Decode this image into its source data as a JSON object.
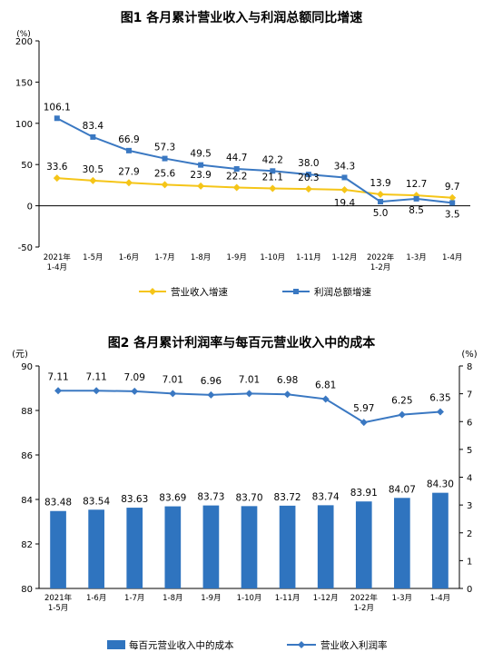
{
  "chart_data": [
    {
      "type": "line",
      "title": "图1  各月累计营业收入与利润总额同比增速",
      "unit_label": "(%)",
      "categories": [
        "2021年\n1-4月",
        "1-5月",
        "1-6月",
        "1-7月",
        "1-8月",
        "1-9月",
        "1-10月",
        "1-11月",
        "1-12月",
        "2022年\n1-2月",
        "1-3月",
        "1-4月"
      ],
      "ylim": [
        -50,
        200
      ],
      "yticks": [
        -50,
        0,
        50,
        100,
        150,
        200
      ],
      "grid": false,
      "legend_position": "bottom",
      "series": [
        {
          "name": "营业收入增速",
          "color": "#f5c518",
          "marker": "diamond",
          "values": [
            33.6,
            30.5,
            27.9,
            25.6,
            23.9,
            22.2,
            21.1,
            20.3,
            19.4,
            13.9,
            12.7,
            9.7
          ]
        },
        {
          "name": "利润总额增速",
          "color": "#3a78c2",
          "marker": "square",
          "values": [
            106.1,
            83.4,
            66.9,
            57.3,
            49.5,
            44.7,
            42.2,
            38.0,
            34.3,
            5.0,
            8.5,
            3.5
          ]
        }
      ]
    },
    {
      "type": "bar",
      "title": "图2  各月累计利润率与每百元营业收入中的成本",
      "left_unit_label": "(元)",
      "right_unit_label": "(%)",
      "categories": [
        "2021年\n1-5月",
        "1-6月",
        "1-7月",
        "1-8月",
        "1-9月",
        "1-10月",
        "1-11月",
        "1-12月",
        "2022年\n1-2月",
        "1-3月",
        "1-4月"
      ],
      "ylim_left": [
        80,
        90
      ],
      "yticks_left": [
        80,
        82,
        84,
        86,
        88,
        90
      ],
      "ylim_right": [
        0,
        8
      ],
      "yticks_right": [
        0,
        1,
        2,
        3,
        4,
        5,
        6,
        7,
        8
      ],
      "grid": false,
      "legend_position": "bottom",
      "series": [
        {
          "name": "每百元营业收入中的成本",
          "type": "bar",
          "axis": "left",
          "color": "#2f74bf",
          "values": [
            83.48,
            83.54,
            83.63,
            83.69,
            83.73,
            83.7,
            83.72,
            83.74,
            83.91,
            84.07,
            84.3
          ]
        },
        {
          "name": "营业收入利润率",
          "type": "line",
          "axis": "right",
          "color": "#3a78c2",
          "marker": "diamond",
          "values": [
            7.11,
            7.11,
            7.09,
            7.01,
            6.96,
            7.01,
            6.98,
            6.81,
            5.97,
            6.25,
            6.35
          ]
        }
      ]
    }
  ]
}
